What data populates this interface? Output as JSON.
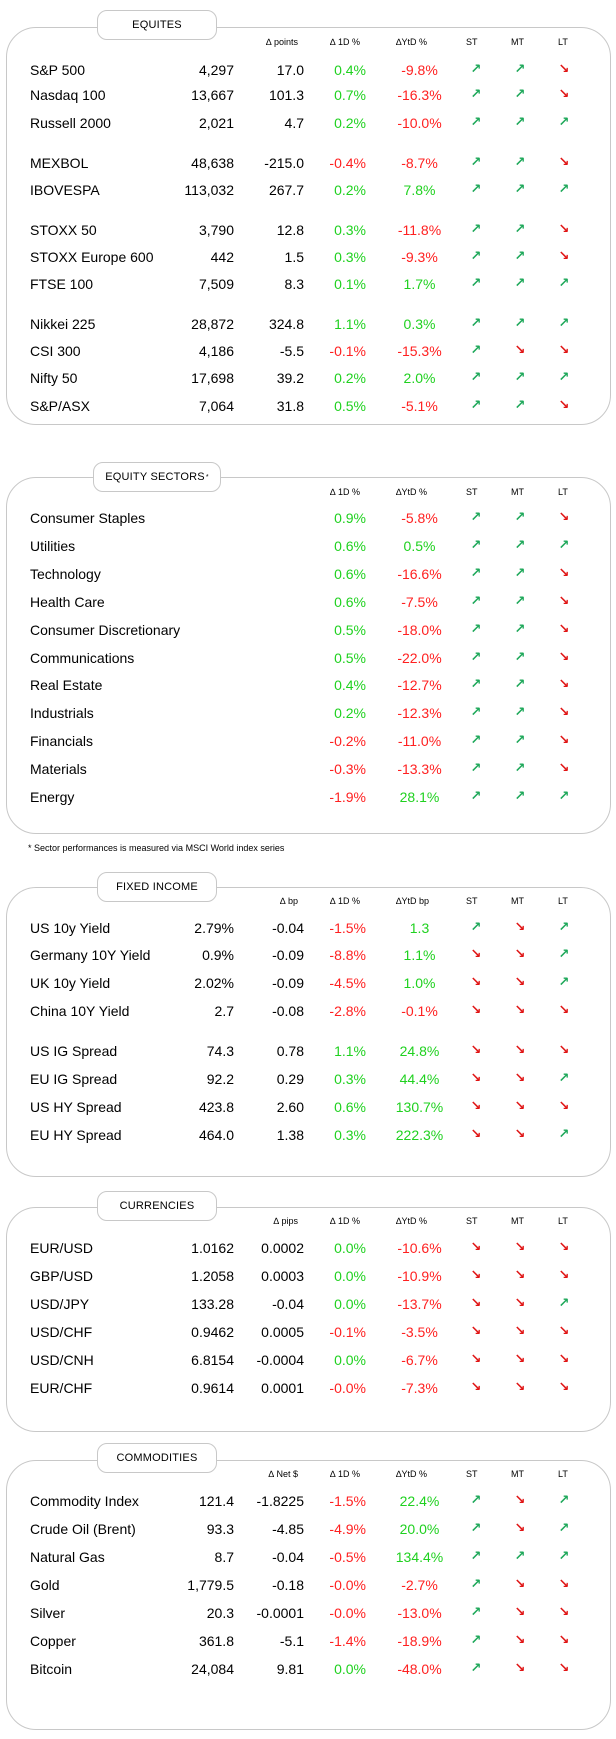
{
  "equities": {
    "title": "EQUITES",
    "headers": {
      "chg": "∆ points",
      "d1": "∆ 1D %",
      "ytd": "∆YtD %",
      "st": "ST",
      "mt": "MT",
      "lt": "LT"
    },
    "rows": [
      {
        "name": "S&P 500",
        "value": "4,297",
        "chg": "17.0",
        "d1": "0.4%",
        "ytd": "-9.8%",
        "st": "up",
        "mt": "up",
        "lt": "down"
      },
      {
        "name": "Nasdaq 100",
        "value": "13,667",
        "chg": "101.3",
        "d1": "0.7%",
        "ytd": "-16.3%",
        "st": "up",
        "mt": "up",
        "lt": "down"
      },
      {
        "name": "Russell 2000",
        "value": "2,021",
        "chg": "4.7",
        "d1": "0.2%",
        "ytd": "-10.0%",
        "st": "up",
        "mt": "up",
        "lt": "up"
      },
      {
        "name": "MEXBOL",
        "value": "48,638",
        "chg": "-215.0",
        "d1": "-0.4%",
        "ytd": "-8.7%",
        "st": "up",
        "mt": "up",
        "lt": "down"
      },
      {
        "name": "IBOVESPA",
        "value": "113,032",
        "chg": "267.7",
        "d1": "0.2%",
        "ytd": "7.8%",
        "st": "up",
        "mt": "up",
        "lt": "up"
      },
      {
        "name": "STOXX 50",
        "value": "3,790",
        "chg": "12.8",
        "d1": "0.3%",
        "ytd": "-11.8%",
        "st": "up",
        "mt": "up",
        "lt": "down"
      },
      {
        "name": "STOXX Europe 600",
        "value": "442",
        "chg": "1.5",
        "d1": "0.3%",
        "ytd": "-9.3%",
        "st": "up",
        "mt": "up",
        "lt": "down"
      },
      {
        "name": "FTSE 100",
        "value": "7,509",
        "chg": "8.3",
        "d1": "0.1%",
        "ytd": "1.7%",
        "st": "up",
        "mt": "up",
        "lt": "up"
      },
      {
        "name": "Nikkei 225",
        "value": "28,872",
        "chg": "324.8",
        "d1": "1.1%",
        "ytd": "0.3%",
        "st": "up",
        "mt": "up",
        "lt": "up"
      },
      {
        "name": "CSI 300",
        "value": "4,186",
        "chg": "-5.5",
        "d1": "-0.1%",
        "ytd": "-15.3%",
        "st": "up",
        "mt": "down",
        "lt": "down"
      },
      {
        "name": "Nifty  50",
        "value": "17,698",
        "chg": "39.2",
        "d1": "0.2%",
        "ytd": "2.0%",
        "st": "up",
        "mt": "up",
        "lt": "up"
      },
      {
        "name": "S&P/ASX",
        "value": "7,064",
        "chg": "31.8",
        "d1": "0.5%",
        "ytd": "-5.1%",
        "st": "up",
        "mt": "up",
        "lt": "down"
      }
    ]
  },
  "sectors": {
    "title": "EQUITY SECTORS",
    "title_mark": "*",
    "headers": {
      "d1": "∆ 1D %",
      "ytd": "∆YtD %",
      "st": "ST",
      "mt": "MT",
      "lt": "LT"
    },
    "rows": [
      {
        "name": "Consumer Staples",
        "d1": "0.9%",
        "ytd": "-5.8%",
        "st": "up",
        "mt": "up",
        "lt": "down"
      },
      {
        "name": "Utilities",
        "d1": "0.6%",
        "ytd": "0.5%",
        "st": "up",
        "mt": "up",
        "lt": "up"
      },
      {
        "name": "Technology",
        "d1": "0.6%",
        "ytd": "-16.6%",
        "st": "up",
        "mt": "up",
        "lt": "down"
      },
      {
        "name": "Health Care",
        "d1": "0.6%",
        "ytd": "-7.5%",
        "st": "up",
        "mt": "up",
        "lt": "down"
      },
      {
        "name": "Consumer Discretionary",
        "d1": "0.5%",
        "ytd": "-18.0%",
        "st": "up",
        "mt": "up",
        "lt": "down"
      },
      {
        "name": "Communications",
        "d1": "0.5%",
        "ytd": "-22.0%",
        "st": "up",
        "mt": "up",
        "lt": "down"
      },
      {
        "name": "Real Estate",
        "d1": "0.4%",
        "ytd": "-12.7%",
        "st": "up",
        "mt": "up",
        "lt": "down"
      },
      {
        "name": "Industrials",
        "d1": "0.2%",
        "ytd": "-12.3%",
        "st": "up",
        "mt": "up",
        "lt": "down"
      },
      {
        "name": "Financials",
        "d1": "-0.2%",
        "ytd": "-11.0%",
        "st": "up",
        "mt": "up",
        "lt": "down"
      },
      {
        "name": "Materials",
        "d1": "-0.3%",
        "ytd": "-13.3%",
        "st": "up",
        "mt": "up",
        "lt": "down"
      },
      {
        "name": "Energy",
        "d1": "-1.9%",
        "ytd": "28.1%",
        "st": "up",
        "mt": "up",
        "lt": "up"
      }
    ],
    "footnote": "* Sector performances is measured via MSCI World index series"
  },
  "fixed_income": {
    "title": "FIXED INCOME",
    "headers": {
      "chg": "∆ bp",
      "d1": "∆ 1D %",
      "ytd": "∆YtD bp",
      "st": "ST",
      "mt": "MT",
      "lt": "LT"
    },
    "rows": [
      {
        "name": "US 10y Yield",
        "value": "2.79%",
        "chg": "-0.04",
        "d1": "-1.5%",
        "ytd": "1.3",
        "st": "up",
        "mt": "down",
        "lt": "up"
      },
      {
        "name": "Germany 10Y Yield",
        "value": "0.9%",
        "chg": "-0.09",
        "d1": "-8.8%",
        "ytd": "1.1%",
        "st": "down",
        "mt": "down",
        "lt": "up"
      },
      {
        "name": "UK 10y Yield",
        "value": "2.02%",
        "chg": "-0.09",
        "d1": "-4.5%",
        "ytd": "1.0%",
        "st": "down",
        "mt": "down",
        "lt": "up"
      },
      {
        "name": "China 10Y Yield",
        "value": "2.7",
        "chg": "-0.08",
        "d1": "-2.8%",
        "ytd": "-0.1%",
        "st": "down",
        "mt": "down",
        "lt": "down"
      },
      {
        "name": "US IG Spread",
        "value": "74.3",
        "chg": "0.78",
        "d1": "1.1%",
        "ytd": "24.8%",
        "st": "down",
        "mt": "down",
        "lt": "down"
      },
      {
        "name": "EU IG Spread",
        "value": "92.2",
        "chg": "0.29",
        "d1": "0.3%",
        "ytd": "44.4%",
        "st": "down",
        "mt": "down",
        "lt": "up"
      },
      {
        "name": "US HY Spread",
        "value": "423.8",
        "chg": "2.60",
        "d1": "0.6%",
        "ytd": "130.7%",
        "st": "down",
        "mt": "down",
        "lt": "down"
      },
      {
        "name": "EU HY Spread",
        "value": "464.0",
        "chg": "1.38",
        "d1": "0.3%",
        "ytd": "222.3%",
        "st": "down",
        "mt": "down",
        "lt": "up"
      }
    ]
  },
  "currencies": {
    "title": "CURRENCIES",
    "headers": {
      "chg": "∆ pips",
      "d1": "∆ 1D %",
      "ytd": "∆YtD %",
      "st": "ST",
      "mt": "MT",
      "lt": "LT"
    },
    "rows": [
      {
        "name": "EUR/USD",
        "value": "1.0162",
        "chg": "0.0002",
        "d1": "0.0%",
        "ytd": "-10.6%",
        "st": "down",
        "mt": "down",
        "lt": "down"
      },
      {
        "name": "GBP/USD",
        "value": "1.2058",
        "chg": "0.0003",
        "d1": "0.0%",
        "ytd": "-10.9%",
        "st": "down",
        "mt": "down",
        "lt": "down"
      },
      {
        "name": "USD/JPY",
        "value": "133.28",
        "chg": "-0.04",
        "d1": "0.0%",
        "ytd": "-13.7%",
        "st": "down",
        "mt": "down",
        "lt": "up"
      },
      {
        "name": "USD/CHF",
        "value": "0.9462",
        "chg": "0.0005",
        "d1": "-0.1%",
        "ytd": "-3.5%",
        "st": "down",
        "mt": "down",
        "lt": "down"
      },
      {
        "name": "USD/CNH",
        "value": "6.8154",
        "chg": "-0.0004",
        "d1": "0.0%",
        "ytd": "-6.7%",
        "st": "down",
        "mt": "down",
        "lt": "down"
      },
      {
        "name": "EUR/CHF",
        "value": "0.9614",
        "chg": "0.0001",
        "d1": "-0.0%",
        "ytd": "-7.3%",
        "st": "down",
        "mt": "down",
        "lt": "down"
      }
    ]
  },
  "commodities": {
    "title": "COMMODITIES",
    "headers": {
      "chg": "∆ Net $",
      "d1": "∆ 1D %",
      "ytd": "∆YtD %",
      "st": "ST",
      "mt": "MT",
      "lt": "LT"
    },
    "rows": [
      {
        "name": "Commodity Index",
        "value": "121.4",
        "chg": "-1.8225",
        "d1": "-1.5%",
        "ytd": "22.4%",
        "st": "up",
        "mt": "down",
        "lt": "up"
      },
      {
        "name": "Crude Oil (Brent)",
        "value": "93.3",
        "chg": "-4.85",
        "d1": "-4.9%",
        "ytd": "20.0%",
        "st": "up",
        "mt": "down",
        "lt": "up"
      },
      {
        "name": "Natural Gas",
        "value": "8.7",
        "chg": "-0.04",
        "d1": "-0.5%",
        "ytd": "134.4%",
        "st": "up",
        "mt": "up",
        "lt": "up"
      },
      {
        "name": "Gold",
        "value": "1,779.5",
        "chg": "-0.18",
        "d1": "-0.0%",
        "ytd": "-2.7%",
        "st": "up",
        "mt": "down",
        "lt": "down"
      },
      {
        "name": "Silver",
        "value": "20.3",
        "chg": "-0.0001",
        "d1": "-0.0%",
        "ytd": "-13.0%",
        "st": "up",
        "mt": "down",
        "lt": "down"
      },
      {
        "name": "Copper",
        "value": "361.8",
        "chg": "-5.1",
        "d1": "-1.4%",
        "ytd": "-18.9%",
        "st": "up",
        "mt": "down",
        "lt": "down"
      },
      {
        "name": "Bitcoin",
        "value": "24,084",
        "chg": "9.81",
        "d1": "0.0%",
        "ytd": "-48.0%",
        "st": "up",
        "mt": "down",
        "lt": "down"
      }
    ]
  },
  "colors": {
    "positive": "#1fd11f",
    "negative": "#ff2020",
    "arrow_up": "#1ea85a",
    "arrow_down": "#e01414",
    "border": "#c8c8c8"
  }
}
